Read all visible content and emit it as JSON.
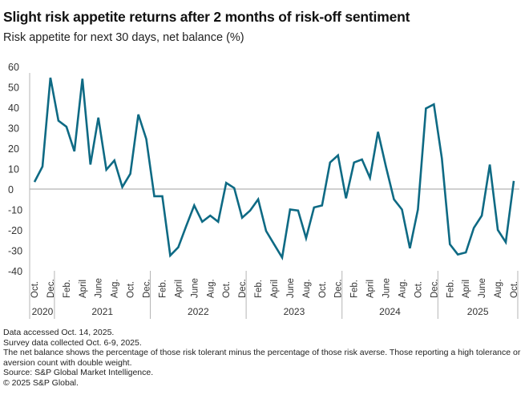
{
  "header": {
    "title": "Slight risk appetite returns after 2 months of risk-off sentiment",
    "subtitle": "Risk appetite for next 30 days, net balance (%)"
  },
  "footer": {
    "lines": [
      "Data accessed Oct. 14, 2025.",
      "Survey data collected Oct. 6-9, 2025.",
      "The net balance shows the percentage of those risk tolerant minus the percentage of those risk averse. Those reporting a high tolerance or aversion count with double weight.",
      "Source: S&P Global Market Intelligence.",
      "© 2025 S&P Global."
    ]
  },
  "colors": {
    "line": "#0E6A84",
    "axis": "#b5b5b5",
    "text": "#222222"
  },
  "chart_data": {
    "type": "line",
    "title": "Slight risk appetite returns after 2 months of risk-off sentiment",
    "subtitle": "Risk appetite for next 30 days, net balance (%)",
    "xlabel": "",
    "ylabel": "",
    "ylim": [
      -40,
      60
    ],
    "yticks": [
      60,
      50,
      40,
      30,
      20,
      10,
      0,
      -10,
      -20,
      -30,
      -40
    ],
    "grid": false,
    "legend": "none",
    "x_start": "Oct 2020",
    "x_end": "Oct 2025",
    "tick_labels": [
      {
        "index": 0,
        "label": "Oct."
      },
      {
        "index": 2,
        "label": "Dec."
      },
      {
        "index": 4,
        "label": "Feb."
      },
      {
        "index": 6,
        "label": "April"
      },
      {
        "index": 8,
        "label": "June"
      },
      {
        "index": 10,
        "label": "Aug."
      },
      {
        "index": 12,
        "label": "Oct."
      },
      {
        "index": 14,
        "label": "Dec."
      },
      {
        "index": 16,
        "label": "Feb."
      },
      {
        "index": 18,
        "label": "April"
      },
      {
        "index": 20,
        "label": "June"
      },
      {
        "index": 22,
        "label": "Aug."
      },
      {
        "index": 24,
        "label": "Oct."
      },
      {
        "index": 26,
        "label": "Dec."
      },
      {
        "index": 28,
        "label": "Feb."
      },
      {
        "index": 30,
        "label": "April"
      },
      {
        "index": 32,
        "label": "June"
      },
      {
        "index": 34,
        "label": "Aug."
      },
      {
        "index": 36,
        "label": "Oct."
      },
      {
        "index": 38,
        "label": "Dec."
      },
      {
        "index": 40,
        "label": "Feb."
      },
      {
        "index": 42,
        "label": "April"
      },
      {
        "index": 44,
        "label": "June"
      },
      {
        "index": 46,
        "label": "Aug."
      },
      {
        "index": 48,
        "label": "Oct."
      },
      {
        "index": 50,
        "label": "Dec."
      },
      {
        "index": 52,
        "label": "Feb."
      },
      {
        "index": 54,
        "label": "April"
      },
      {
        "index": 56,
        "label": "June"
      },
      {
        "index": 58,
        "label": "Aug."
      },
      {
        "index": 60,
        "label": "Oct."
      }
    ],
    "years": [
      {
        "label": "2020",
        "start": 0,
        "end": 2
      },
      {
        "label": "2021",
        "start": 3,
        "end": 14
      },
      {
        "label": "2022",
        "start": 15,
        "end": 26
      },
      {
        "label": "2023",
        "start": 27,
        "end": 38
      },
      {
        "label": "2024",
        "start": 39,
        "end": 50
      },
      {
        "label": "2025",
        "start": 51,
        "end": 60
      }
    ],
    "x": [
      "2020-10",
      "2020-11",
      "2020-12",
      "2021-01",
      "2021-02",
      "2021-03",
      "2021-04",
      "2021-05",
      "2021-06",
      "2021-07",
      "2021-08",
      "2021-09",
      "2021-10",
      "2021-11",
      "2021-12",
      "2022-01",
      "2022-02",
      "2022-03",
      "2022-04",
      "2022-05",
      "2022-06",
      "2022-07",
      "2022-08",
      "2022-09",
      "2022-10",
      "2022-11",
      "2022-12",
      "2023-01",
      "2023-02",
      "2023-03",
      "2023-04",
      "2023-05",
      "2023-06",
      "2023-07",
      "2023-08",
      "2023-09",
      "2023-10",
      "2023-11",
      "2023-12",
      "2024-01",
      "2024-02",
      "2024-03",
      "2024-04",
      "2024-05",
      "2024-06",
      "2024-07",
      "2024-08",
      "2024-09",
      "2024-10",
      "2024-11",
      "2024-12",
      "2025-01",
      "2025-02",
      "2025-03",
      "2025-04",
      "2025-05",
      "2025-06",
      "2025-07",
      "2025-08",
      "2025-09",
      "2025-10"
    ],
    "series": [
      {
        "name": "Risk appetite net balance",
        "values": [
          3.5,
          11,
          54.5,
          33.5,
          30.5,
          18.5,
          54,
          12,
          35,
          9.5,
          14,
          1,
          7.5,
          36.5,
          24.5,
          -3.5,
          -3.5,
          -32.5,
          -28.5,
          -18,
          -8,
          -16,
          -13,
          -16,
          3,
          0.5,
          -14,
          -10.5,
          -5,
          -20.5,
          -27,
          -33.5,
          -10,
          -10.5,
          -24,
          -9,
          -8,
          13,
          16.5,
          -4.5,
          13,
          14.5,
          5.5,
          28,
          11,
          -5,
          -10,
          -29,
          -10,
          39.5,
          41.5,
          15,
          -27,
          -32,
          -31,
          -19,
          -13,
          12,
          -20,
          -26,
          4
        ]
      }
    ]
  }
}
